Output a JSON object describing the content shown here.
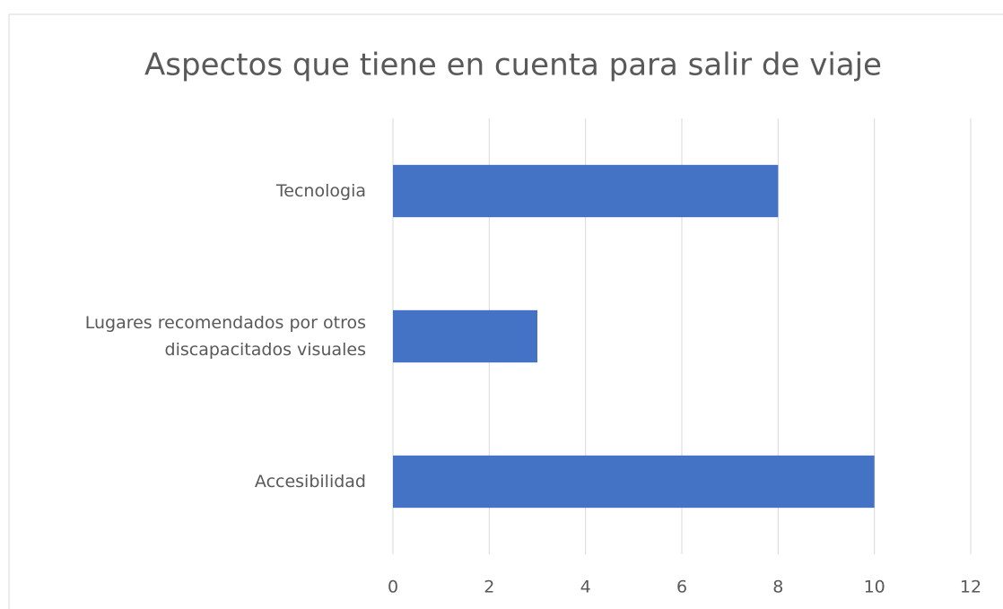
{
  "chart_data": {
    "type": "bar",
    "orientation": "horizontal",
    "title": "Aspectos que tiene en cuenta para salir de viaje",
    "categories": [
      "Tecnologia",
      "Lugares recomendados por otros discapacitados visuales",
      "Accesibilidad"
    ],
    "values": [
      8,
      3,
      10
    ],
    "color": "#4472c4",
    "xlim": [
      0,
      12
    ],
    "xticks": [
      0,
      2,
      4,
      6,
      8,
      10,
      12
    ],
    "grid": true
  }
}
